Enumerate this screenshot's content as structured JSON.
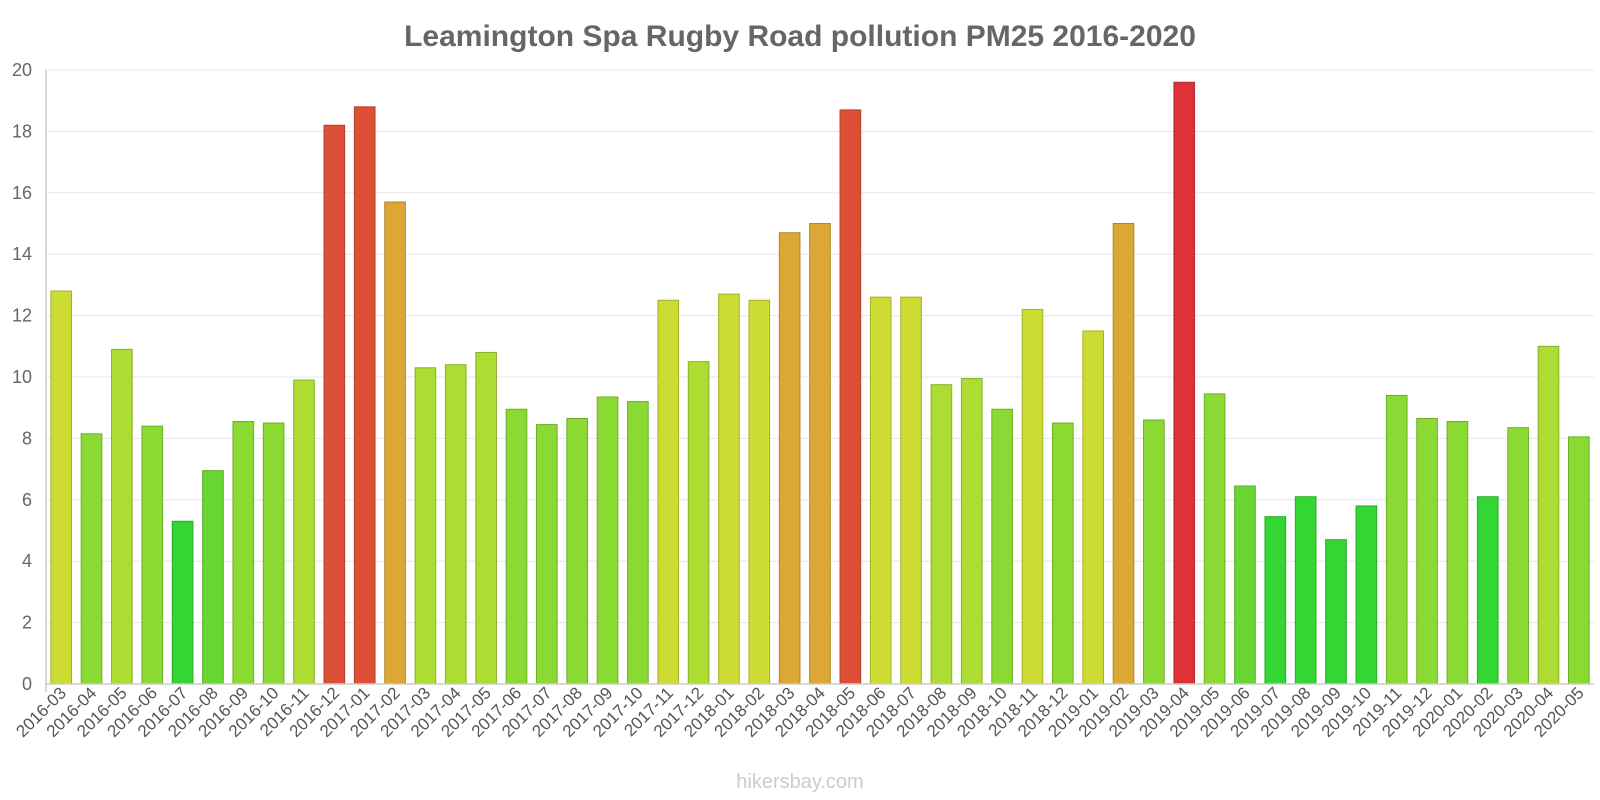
{
  "chart_data": {
    "type": "bar",
    "title": "Leamington Spa Rugby Road pollution PM25 2016-2020",
    "xlabel": "",
    "ylabel": "",
    "ylim": [
      0,
      20
    ],
    "yticks": [
      0,
      2,
      4,
      6,
      8,
      10,
      12,
      14,
      16,
      18,
      20
    ],
    "grid": true,
    "categories": [
      "2016-03",
      "2016-04",
      "2016-05",
      "2016-06",
      "2016-07",
      "2016-08",
      "2016-09",
      "2016-10",
      "2016-11",
      "2016-12",
      "2017-01",
      "2017-02",
      "2017-03",
      "2017-04",
      "2017-05",
      "2017-06",
      "2017-07",
      "2017-08",
      "2017-09",
      "2017-10",
      "2017-11",
      "2017-12",
      "2018-01",
      "2018-02",
      "2018-03",
      "2018-04",
      "2018-05",
      "2018-06",
      "2018-07",
      "2018-08",
      "2018-09",
      "2018-10",
      "2018-11",
      "2018-12",
      "2019-01",
      "2019-02",
      "2019-03",
      "2019-04",
      "2019-05",
      "2019-06",
      "2019-07",
      "2019-08",
      "2019-09",
      "2019-10",
      "2019-11",
      "2019-12",
      "2020-01",
      "2020-02",
      "2020-03",
      "2020-04",
      "2020-05"
    ],
    "values": [
      12.8,
      8.15,
      10.9,
      8.4,
      5.3,
      6.95,
      8.55,
      8.5,
      9.9,
      18.2,
      18.8,
      15.7,
      10.3,
      10.4,
      10.8,
      8.95,
      8.45,
      8.65,
      9.35,
      9.2,
      12.5,
      10.5,
      12.7,
      12.5,
      14.7,
      15.0,
      18.7,
      12.6,
      12.6,
      9.75,
      9.95,
      8.95,
      12.2,
      8.5,
      11.5,
      15.0,
      8.6,
      19.6,
      9.45,
      6.45,
      5.45,
      6.1,
      4.7,
      5.8,
      9.4,
      8.65,
      8.55,
      6.1,
      8.35,
      11.0,
      8.05
    ],
    "colors": [
      "#cddc33",
      "#8ada33",
      "#addc33",
      "#8ada33",
      "#33d633",
      "#6ad633",
      "#8ada33",
      "#8ada33",
      "#addc33",
      "#dd5037",
      "#dd5037",
      "#dba737",
      "#addc33",
      "#addc33",
      "#addc33",
      "#8ada33",
      "#8ada33",
      "#8ada33",
      "#8ada33",
      "#8ada33",
      "#cddc33",
      "#addc33",
      "#cddc33",
      "#cddc33",
      "#dba737",
      "#dba737",
      "#dd5037",
      "#cddc33",
      "#cddc33",
      "#addc33",
      "#addc33",
      "#8ada33",
      "#cddc33",
      "#8ada33",
      "#cddc33",
      "#dba737",
      "#8ada33",
      "#dd3337",
      "#8ada33",
      "#6ad633",
      "#33d633",
      "#33d633",
      "#33d633",
      "#33d633",
      "#8ada33",
      "#8ada33",
      "#8ada33",
      "#33d633",
      "#8ada33",
      "#addc33",
      "#8ada33"
    ]
  },
  "credit": "hikersbay.com"
}
